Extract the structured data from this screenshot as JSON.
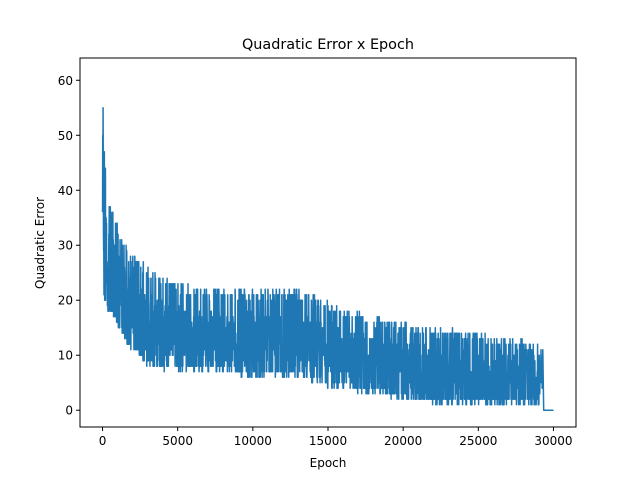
{
  "chart_data": {
    "type": "line",
    "title": "Quadratic Error x Epoch",
    "xlabel": "Epoch",
    "ylabel": "Quadratic Error",
    "xlim": [
      -1500,
      31500
    ],
    "ylim": [
      -3.05,
      64.05
    ],
    "xticks": [
      0,
      5000,
      10000,
      15000,
      20000,
      25000,
      30000
    ],
    "yticks": [
      0,
      10,
      20,
      30,
      40,
      50,
      60
    ],
    "grid": false,
    "legend": "none",
    "series": [
      {
        "color": "#1f77b4",
        "x_end_of_noise": 29300,
        "x_last": 30000,
        "final_value": 0,
        "envelope": [
          {
            "epoch": 0,
            "min": 24,
            "max": 61
          },
          {
            "epoch": 100,
            "min": 20,
            "max": 49
          },
          {
            "epoch": 300,
            "min": 18,
            "max": 40
          },
          {
            "epoch": 700,
            "min": 17,
            "max": 36
          },
          {
            "epoch": 1200,
            "min": 14,
            "max": 32
          },
          {
            "epoch": 2000,
            "min": 11,
            "max": 28
          },
          {
            "epoch": 3000,
            "min": 8,
            "max": 26
          },
          {
            "epoch": 5000,
            "min": 7,
            "max": 23
          },
          {
            "epoch": 7000,
            "min": 7,
            "max": 22
          },
          {
            "epoch": 10000,
            "min": 6,
            "max": 22
          },
          {
            "epoch": 13000,
            "min": 6,
            "max": 22
          },
          {
            "epoch": 15000,
            "min": 4,
            "max": 20
          },
          {
            "epoch": 18000,
            "min": 3,
            "max": 17
          },
          {
            "epoch": 20000,
            "min": 2,
            "max": 16
          },
          {
            "epoch": 22000,
            "min": 1,
            "max": 15
          },
          {
            "epoch": 25000,
            "min": 1,
            "max": 14
          },
          {
            "epoch": 27000,
            "min": 1,
            "max": 13
          },
          {
            "epoch": 29300,
            "min": 1,
            "max": 12
          }
        ]
      }
    ]
  }
}
